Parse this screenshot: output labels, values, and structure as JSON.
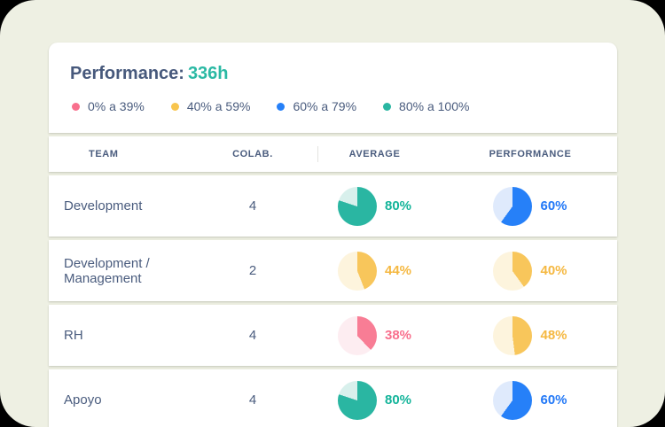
{
  "app": {
    "background": "#eef0e3",
    "header": {
      "title_label": "Performance:",
      "title_value": "336h",
      "title_value_color": "#2bb9a4"
    },
    "legend": [
      {
        "label": "0% a 39%",
        "color": "#f8708d"
      },
      {
        "label": "40% a 59%",
        "color": "#f8c54e"
      },
      {
        "label": "60% a 79%",
        "color": "#2680f8"
      },
      {
        "label": "80% a 100%",
        "color": "#2ab6a2"
      }
    ],
    "table": {
      "headers": [
        "TEAM",
        "COLAB.",
        "AVERAGE",
        "PERFORMANCE"
      ],
      "rows": [
        {
          "team": "Development",
          "colab": "4",
          "average": {
            "value": 80,
            "label": "80%",
            "color": "#2ab6a2",
            "track": "#d8f0ec",
            "text_color": "#14b49a"
          },
          "performance": {
            "value": 60,
            "label": "60%",
            "color": "#2680f8",
            "track": "#dfeafc",
            "text_color": "#2278f7"
          }
        },
        {
          "team": "Development / Management",
          "colab": "2",
          "average": {
            "value": 44,
            "label": "44%",
            "color": "#f8c65b",
            "track": "#fdf4dd",
            "text_color": "#f5b841"
          },
          "performance": {
            "value": 40,
            "label": "40%",
            "color": "#f8c65b",
            "track": "#fdf4dd",
            "text_color": "#f5b841"
          }
        },
        {
          "team": "RH",
          "colab": "4",
          "average": {
            "value": 38,
            "label": "38%",
            "color": "#f87d95",
            "track": "#fdedf1",
            "text_color": "#f8708d"
          },
          "performance": {
            "value": 48,
            "label": "48%",
            "color": "#f8c65b",
            "track": "#fdf4dd",
            "text_color": "#f5b841"
          }
        },
        {
          "team": "Apoyo",
          "colab": "4",
          "average": {
            "value": 80,
            "label": "80%",
            "color": "#2ab6a2",
            "track": "#d8f0ec",
            "text_color": "#14b49a"
          },
          "performance": {
            "value": 60,
            "label": "60%",
            "color": "#2680f8",
            "track": "#dfeafc",
            "text_color": "#2278f7"
          }
        }
      ]
    }
  }
}
